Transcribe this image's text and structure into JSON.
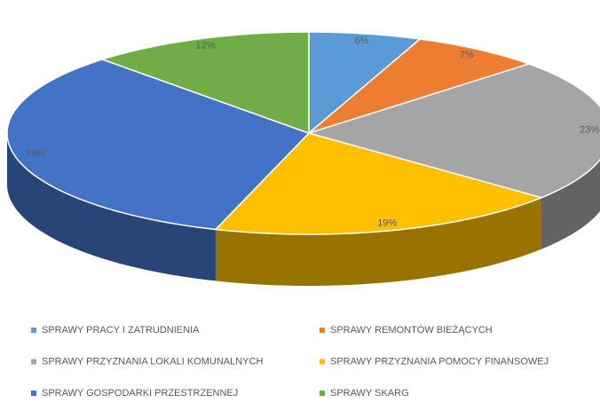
{
  "chart_data": {
    "type": "pie",
    "categories": [
      "SPRAWY PRACY I ZATRUDNIENIA",
      "SPRAWY REMONTÓW BIEŻĄCYCH",
      "SPRAWY PRZYZNANIA LOKALI KOMUNALNYCH",
      "SPRAWY PRZYZNANIA POMOCY FINANSOWEJ",
      "SPRAWY GOSPODARKI PRZESTRZENNEJ",
      "SPRAWY SKARG"
    ],
    "values": [
      6,
      7,
      23,
      19,
      33,
      12
    ],
    "value_labels": [
      "6%",
      "7%",
      "23%",
      "19%",
      "33%",
      "12%"
    ],
    "colors": [
      "#5b9bd5",
      "#ed7d31",
      "#a5a5a5",
      "#ffc000",
      "#4472c4",
      "#70ad47"
    ],
    "legend": "bottom"
  }
}
